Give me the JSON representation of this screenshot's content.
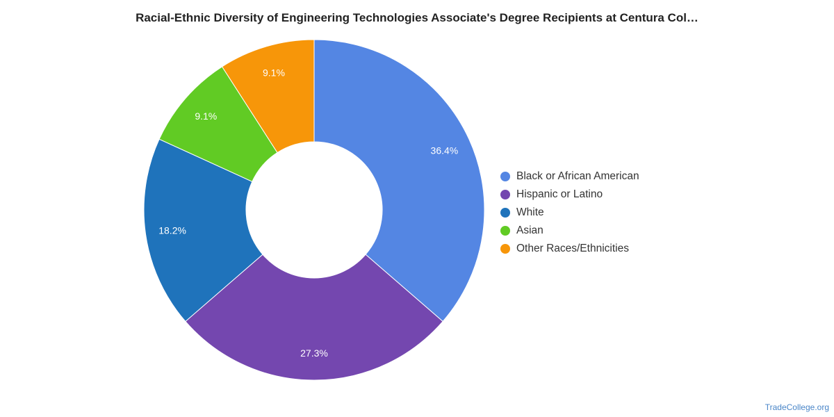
{
  "chart_data": {
    "type": "pie",
    "title": "Racial-Ethnic Diversity of Engineering Technologies Associate's Degree Recipients at Centura Col…",
    "slices": [
      {
        "name": "Black or African American",
        "value": 36.4,
        "label": "36.4%",
        "color": "#5486e3"
      },
      {
        "name": "Hispanic or Latino",
        "value": 27.3,
        "label": "27.3%",
        "color": "#7447af"
      },
      {
        "name": "White",
        "value": 18.2,
        "label": "18.2%",
        "color": "#1f73bb"
      },
      {
        "name": "Asian",
        "value": 9.1,
        "label": "9.1%",
        "color": "#61cb24"
      },
      {
        "name": "Other Races/Ethnicities",
        "value": 9.1,
        "label": "9.1%",
        "color": "#f79609"
      }
    ],
    "legend_position": "right",
    "donut": true
  },
  "watermark": "TradeCollege.org"
}
